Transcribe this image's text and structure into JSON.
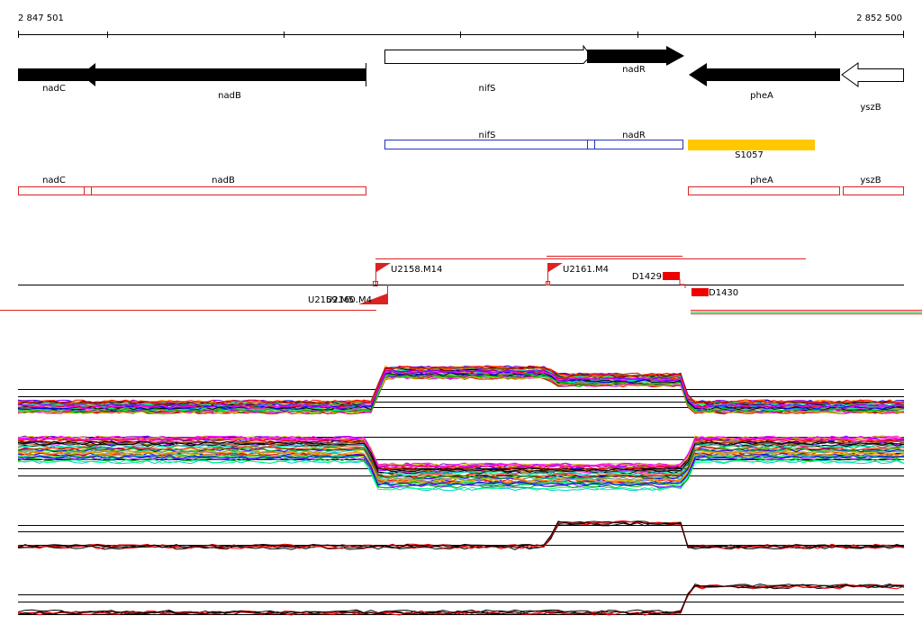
{
  "ruler": {
    "start": "2 847 501",
    "end": "2 852 500"
  },
  "genes": [
    {
      "label": "nadC"
    },
    {
      "label": "nadB"
    },
    {
      "label": "nifS"
    },
    {
      "label": "nadR"
    },
    {
      "label": "pheA"
    },
    {
      "label": "yszB"
    }
  ],
  "operons": [
    {
      "label": "nifS"
    },
    {
      "label": "nadR"
    },
    {
      "label": "S1057"
    }
  ],
  "transcripts": [
    {
      "label": "nadC"
    },
    {
      "label": "nadB"
    },
    {
      "label": "pheA"
    },
    {
      "label": "yszB"
    }
  ],
  "markers": [
    {
      "label": "U2158.M14"
    },
    {
      "label": "U2161.M4"
    },
    {
      "label": "D1429"
    },
    {
      "label": "D1430"
    },
    {
      "label": "U2159.M5"
    },
    {
      "label": "U2160.M4"
    }
  ]
}
